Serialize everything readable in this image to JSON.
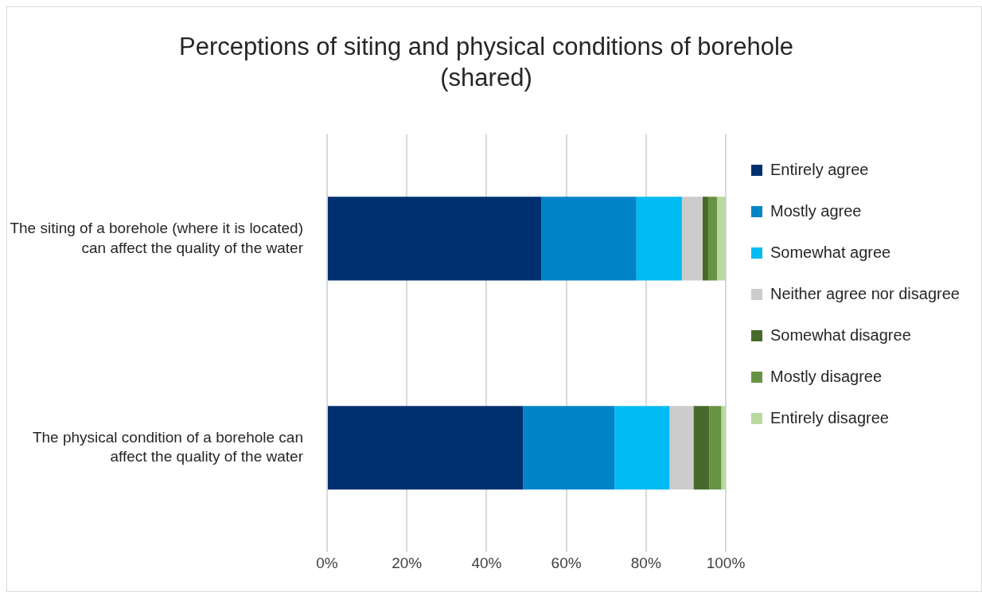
{
  "chart_data": {
    "type": "bar",
    "orientation": "horizontal",
    "stacked": true,
    "title": "Perceptions of siting and physical conditions of borehole (shared)",
    "categories": [
      "The siting of a borehole (where it is located) can affect the quality of the water",
      "The physical condition of a borehole can affect the quality of the water"
    ],
    "series": [
      {
        "name": "Entirely agree",
        "color": "#003070",
        "values": [
          53.7,
          49.2
        ]
      },
      {
        "name": "Mostly agree",
        "color": "#0084c8",
        "values": [
          23.9,
          22.9
        ]
      },
      {
        "name": "Somewhat agree",
        "color": "#00bcf2",
        "values": [
          11.4,
          13.8
        ]
      },
      {
        "name": "Neither agree nor disagree",
        "color": "#cccccc",
        "values": [
          5.2,
          6.0
        ]
      },
      {
        "name": "Somewhat disagree",
        "color": "#476a2c",
        "values": [
          1.4,
          4.0
        ]
      },
      {
        "name": "Mostly disagree",
        "color": "#679444",
        "values": [
          2.2,
          3.0
        ]
      },
      {
        "name": "Entirely disagree",
        "color": "#b9d9a0",
        "values": [
          2.2,
          1.1
        ]
      }
    ],
    "xlim": [
      0,
      100
    ],
    "xticks": [
      {
        "value": 0,
        "label": "0%"
      },
      {
        "value": 20,
        "label": "20%"
      },
      {
        "value": 40,
        "label": "40%"
      },
      {
        "value": 60,
        "label": "60%"
      },
      {
        "value": 80,
        "label": "80%"
      },
      {
        "value": 100,
        "label": "100%"
      }
    ],
    "grid": "x",
    "legend": "right"
  }
}
